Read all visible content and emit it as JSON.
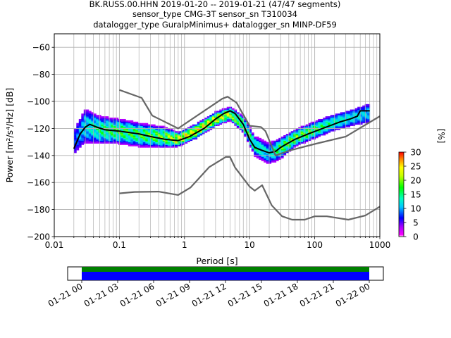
{
  "chart_data": [
    {
      "type": "heatmap",
      "title_lines": [
        "BK.RUSS.00.HHN   2019-01-20 -- 2019-01-21  (47/47 segments)",
        "sensor_type CMG-3T sensor_sn T310034",
        "datalogger_type GuralpMinimus+ datalogger_sn MINP-DF59"
      ],
      "xlabel": "Period [s]",
      "ylabel": "Power [m²/s⁴/Hz] [dB]",
      "xscale": "log",
      "xlim": [
        0.01,
        1000
      ],
      "ylim": [
        -200,
        -50
      ],
      "x_ticks": [
        {
          "value": 0.01,
          "label": "0.01"
        },
        {
          "value": 0.1,
          "label": "0.1"
        },
        {
          "value": 1,
          "label": "1"
        },
        {
          "value": 10,
          "label": "10"
        },
        {
          "value": 100,
          "label": "100"
        },
        {
          "value": 1000,
          "label": "1000"
        }
      ],
      "y_ticks": [
        -60,
        -80,
        -100,
        -120,
        -140,
        -160,
        -180,
        -200
      ],
      "grid": true,
      "colorbar": {
        "label": "[%]",
        "min": 0,
        "max": 30,
        "ticks": [
          0,
          5,
          10,
          15,
          20,
          25,
          30
        ]
      },
      "series": [
        {
          "role": "mean",
          "color": "#000000",
          "points": [
            [
              0.02,
              -135
            ],
            [
              0.025,
              -124
            ],
            [
              0.03,
              -119
            ],
            [
              0.035,
              -117
            ],
            [
              0.045,
              -119
            ],
            [
              0.06,
              -121
            ],
            [
              0.1,
              -122
            ],
            [
              0.2,
              -124
            ],
            [
              0.3,
              -126
            ],
            [
              0.5,
              -128
            ],
            [
              0.8,
              -129
            ],
            [
              1.2,
              -126
            ],
            [
              2,
              -120
            ],
            [
              3,
              -113
            ],
            [
              4,
              -109
            ],
            [
              5,
              -107
            ],
            [
              6,
              -109
            ],
            [
              8,
              -117
            ],
            [
              10,
              -128
            ],
            [
              12,
              -134
            ],
            [
              15,
              -136
            ],
            [
              20,
              -138
            ],
            [
              25,
              -137
            ],
            [
              30,
              -134
            ],
            [
              50,
              -128
            ],
            [
              80,
              -124
            ],
            [
              150,
              -119
            ],
            [
              250,
              -115
            ],
            [
              350,
              -113
            ],
            [
              450,
              -111
            ],
            [
              500,
              -107
            ],
            [
              700,
              -107
            ]
          ]
        },
        {
          "role": "noise-model-high",
          "color": "#666666",
          "points": [
            [
              0.1,
              -91.5
            ],
            [
              0.22,
              -97.4
            ],
            [
              0.32,
              -110.5
            ],
            [
              0.8,
              -120
            ],
            [
              3.8,
              -98
            ],
            [
              4.6,
              -96.5
            ],
            [
              6.3,
              -101
            ],
            [
              10,
              -118
            ],
            [
              15,
              -119
            ],
            [
              17.5,
              -122
            ],
            [
              25,
              -140
            ],
            [
              40,
              -136.5
            ],
            [
              100,
              -131.5
            ],
            [
              300,
              -126
            ],
            [
              1000,
              -111
            ]
          ]
        },
        {
          "role": "noise-model-low",
          "color": "#666666",
          "points": [
            [
              0.1,
              -168
            ],
            [
              0.17,
              -167
            ],
            [
              0.4,
              -166.7
            ],
            [
              0.8,
              -169.2
            ],
            [
              1.24,
              -163.7
            ],
            [
              2.4,
              -148.6
            ],
            [
              4.3,
              -141.1
            ],
            [
              5,
              -141.1
            ],
            [
              6,
              -149
            ],
            [
              10,
              -163
            ],
            [
              12,
              -166
            ],
            [
              15.6,
              -162
            ],
            [
              21.9,
              -177
            ],
            [
              31.6,
              -185
            ],
            [
              45,
              -187.5
            ],
            [
              70,
              -187.5
            ],
            [
              100,
              -185
            ],
            [
              154,
              -185
            ],
            [
              328,
              -187.5
            ],
            [
              600,
              -184.4
            ],
            [
              1000,
              -177.8
            ]
          ]
        }
      ],
      "density": {
        "note": "per-period percentage occurrence",
        "columns": [
          [
            0.02,
            -138,
            -122,
            5,
            8
          ],
          [
            0.03,
            -130,
            -106,
            4,
            14
          ],
          [
            0.05,
            -131,
            -111,
            3,
            18
          ],
          [
            0.1,
            -131,
            -113,
            3,
            20
          ],
          [
            0.2,
            -133,
            -116,
            3,
            20
          ],
          [
            0.5,
            -134,
            -119,
            3,
            22
          ],
          [
            0.8,
            -133,
            -123,
            4,
            28
          ],
          [
            1.5,
            -127,
            -117,
            5,
            28
          ],
          [
            3,
            -118,
            -108,
            4,
            28
          ],
          [
            5,
            -114,
            -104,
            3,
            25
          ],
          [
            8,
            -123,
            -111,
            3,
            20
          ],
          [
            12,
            -140,
            -126,
            3,
            18
          ],
          [
            20,
            -146,
            -131,
            3,
            14
          ],
          [
            30,
            -142,
            -127,
            4,
            20
          ],
          [
            50,
            -133,
            -121,
            4,
            22
          ],
          [
            100,
            -127,
            -115,
            4,
            20
          ],
          [
            200,
            -121,
            -110,
            5,
            16
          ],
          [
            400,
            -117,
            -106,
            5,
            14
          ],
          [
            700,
            -115,
            -102,
            5,
            12
          ]
        ]
      }
    },
    {
      "type": "timeline",
      "x_ticks": [
        "01-21 00",
        "01-21 03",
        "01-21 06",
        "01-21 09",
        "01-21 12",
        "01-21 15",
        "01-21 18",
        "01-21 21",
        "01-22 00"
      ],
      "bands": [
        {
          "role": "data-available",
          "color": "#0000ff",
          "start": 0,
          "end": 1
        },
        {
          "role": "segments-used",
          "color": "#008000",
          "start": 0,
          "end": 1
        }
      ]
    }
  ]
}
